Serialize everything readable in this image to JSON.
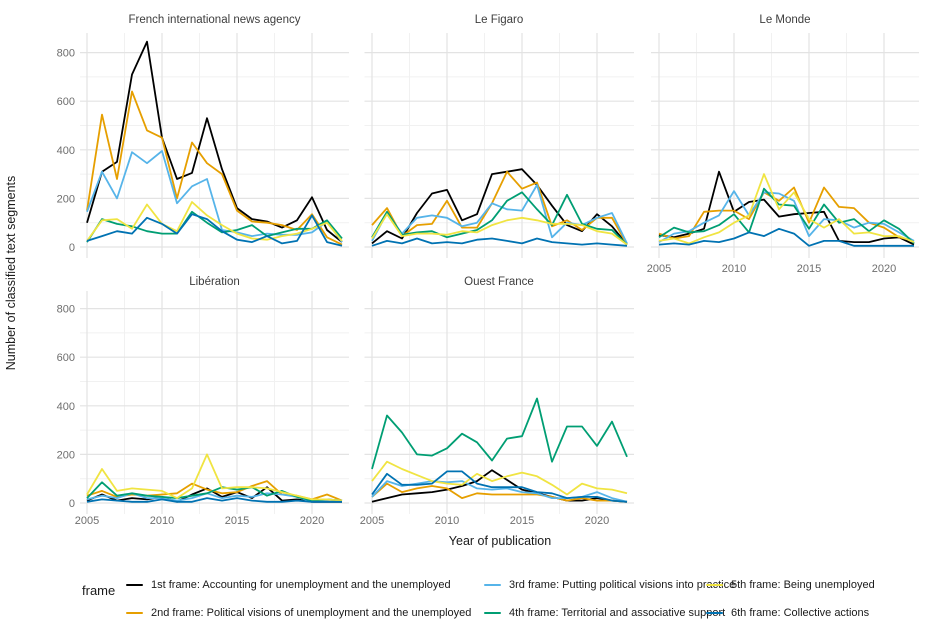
{
  "chart_data": {
    "type": "line",
    "facet_by": "newspaper",
    "xlabel": "Year of publication",
    "ylabel": "Number of classified text segments",
    "x": [
      2005,
      2006,
      2007,
      2008,
      2009,
      2010,
      2011,
      2012,
      2013,
      2014,
      2015,
      2016,
      2017,
      2018,
      2019,
      2020,
      2021,
      2022
    ],
    "x_ticks": [
      "2005",
      "2010",
      "2015",
      "2020"
    ],
    "y_ticks": [
      "0",
      "200",
      "400",
      "600",
      "800"
    ],
    "ylim": [
      0,
      880
    ],
    "grid": true,
    "legend": {
      "title": "frame",
      "position": "bottom",
      "entries": [
        {
          "label": "1st frame: Accounting for unemployment and the unemployed",
          "color": "#000000"
        },
        {
          "label": "2nd frame: Political visions of unemployment and the unemployed",
          "color": "#E69F00"
        },
        {
          "label": "3rd frame: Putting political visions into practice",
          "color": "#56B4E9"
        },
        {
          "label": "4th frame: Territorial and associative support",
          "color": "#009E73"
        },
        {
          "label": "5th frame: Being unemployed",
          "color": "#F0E442"
        },
        {
          "label": "6th frame: Collective actions",
          "color": "#0072B2"
        }
      ]
    },
    "panels": [
      {
        "title": "French international news agency",
        "series": [
          [
            100,
            310,
            350,
            710,
            845,
            450,
            280,
            305,
            530,
            320,
            160,
            115,
            105,
            80,
            110,
            205,
            70,
            20
          ],
          [
            150,
            545,
            280,
            640,
            480,
            450,
            200,
            430,
            345,
            300,
            150,
            105,
            100,
            90,
            70,
            135,
            40,
            10
          ],
          [
            145,
            310,
            200,
            390,
            345,
            395,
            180,
            250,
            280,
            70,
            60,
            45,
            55,
            50,
            50,
            60,
            105,
            20
          ],
          [
            20,
            115,
            95,
            85,
            65,
            55,
            55,
            145,
            100,
            60,
            70,
            90,
            45,
            60,
            75,
            75,
            110,
            35
          ],
          [
            25,
            110,
            115,
            75,
            175,
            95,
            65,
            185,
            130,
            90,
            55,
            35,
            30,
            45,
            55,
            75,
            100,
            25
          ],
          [
            25,
            45,
            65,
            55,
            120,
            95,
            55,
            135,
            115,
            65,
            30,
            20,
            45,
            15,
            25,
            130,
            20,
            5
          ]
        ]
      },
      {
        "title": "Le Figaro",
        "series": [
          [
            15,
            65,
            35,
            140,
            220,
            235,
            110,
            135,
            300,
            310,
            320,
            255,
            170,
            90,
            65,
            135,
            85,
            10
          ],
          [
            90,
            160,
            45,
            90,
            95,
            190,
            80,
            80,
            180,
            310,
            240,
            265,
            85,
            110,
            70,
            120,
            120,
            10
          ],
          [
            25,
            140,
            55,
            120,
            130,
            120,
            85,
            100,
            180,
            155,
            150,
            255,
            40,
            100,
            90,
            120,
            140,
            15
          ],
          [
            40,
            145,
            50,
            60,
            65,
            40,
            55,
            70,
            110,
            190,
            225,
            155,
            90,
            215,
            95,
            75,
            70,
            10
          ],
          [
            35,
            135,
            45,
            55,
            55,
            50,
            65,
            60,
            90,
            110,
            120,
            110,
            95,
            95,
            90,
            65,
            55,
            10
          ],
          [
            5,
            25,
            15,
            35,
            15,
            20,
            15,
            30,
            35,
            25,
            15,
            35,
            20,
            15,
            10,
            15,
            10,
            5
          ]
        ]
      },
      {
        "title": "Le Monde",
        "series": [
          [
            50,
            40,
            55,
            75,
            310,
            145,
            185,
            195,
            125,
            135,
            140,
            145,
            25,
            20,
            20,
            35,
            40,
            10
          ],
          [
            55,
            35,
            45,
            145,
            150,
            150,
            115,
            225,
            190,
            245,
            100,
            245,
            165,
            160,
            100,
            80,
            40,
            25
          ],
          [
            20,
            55,
            65,
            100,
            130,
            230,
            130,
            225,
            220,
            190,
            45,
            115,
            110,
            80,
            100,
            95,
            60,
            25
          ],
          [
            40,
            80,
            60,
            65,
            90,
            135,
            60,
            240,
            175,
            170,
            75,
            175,
            100,
            115,
            65,
            110,
            75,
            15
          ],
          [
            25,
            35,
            15,
            40,
            60,
            100,
            130,
            300,
            155,
            225,
            115,
            80,
            115,
            55,
            60,
            45,
            45,
            20
          ],
          [
            10,
            15,
            10,
            25,
            20,
            35,
            60,
            45,
            75,
            55,
            5,
            25,
            25,
            5,
            5,
            5,
            5,
            5
          ]
        ]
      },
      {
        "title": "Libération",
        "series": [
          [
            10,
            35,
            10,
            20,
            15,
            25,
            5,
            35,
            60,
            25,
            45,
            20,
            65,
            10,
            15,
            5,
            5,
            5
          ],
          [
            30,
            50,
            25,
            35,
            30,
            35,
            40,
            80,
            55,
            40,
            45,
            70,
            90,
            35,
            30,
            15,
            35,
            10
          ],
          [
            15,
            30,
            20,
            40,
            20,
            20,
            10,
            20,
            40,
            20,
            30,
            25,
            40,
            35,
            25,
            5,
            15,
            10
          ],
          [
            20,
            85,
            30,
            40,
            30,
            25,
            20,
            30,
            40,
            65,
            55,
            65,
            30,
            50,
            25,
            10,
            15,
            10
          ],
          [
            35,
            140,
            50,
            60,
            55,
            50,
            20,
            60,
            200,
            60,
            65,
            65,
            60,
            45,
            30,
            15,
            15,
            10
          ],
          [
            5,
            15,
            10,
            5,
            5,
            15,
            5,
            5,
            20,
            10,
            20,
            10,
            5,
            5,
            10,
            5,
            5,
            5
          ]
        ]
      },
      {
        "title": "Ouest France",
        "series": [
          [
            5,
            20,
            35,
            40,
            45,
            55,
            70,
            90,
            135,
            95,
            55,
            40,
            25,
            10,
            10,
            20,
            10,
            5
          ],
          [
            25,
            80,
            45,
            60,
            70,
            60,
            20,
            40,
            35,
            35,
            35,
            35,
            25,
            10,
            20,
            10,
            10,
            5
          ],
          [
            25,
            90,
            70,
            80,
            90,
            85,
            90,
            60,
            55,
            60,
            45,
            40,
            20,
            20,
            25,
            45,
            20,
            5
          ],
          [
            140,
            360,
            290,
            200,
            195,
            225,
            285,
            250,
            175,
            265,
            275,
            430,
            170,
            315,
            315,
            235,
            335,
            190
          ],
          [
            90,
            170,
            140,
            115,
            90,
            80,
            75,
            120,
            90,
            110,
            125,
            110,
            75,
            35,
            80,
            60,
            55,
            40
          ],
          [
            35,
            120,
            75,
            75,
            80,
            130,
            130,
            80,
            65,
            65,
            65,
            45,
            40,
            20,
            25,
            25,
            10,
            5
          ]
        ]
      }
    ]
  }
}
